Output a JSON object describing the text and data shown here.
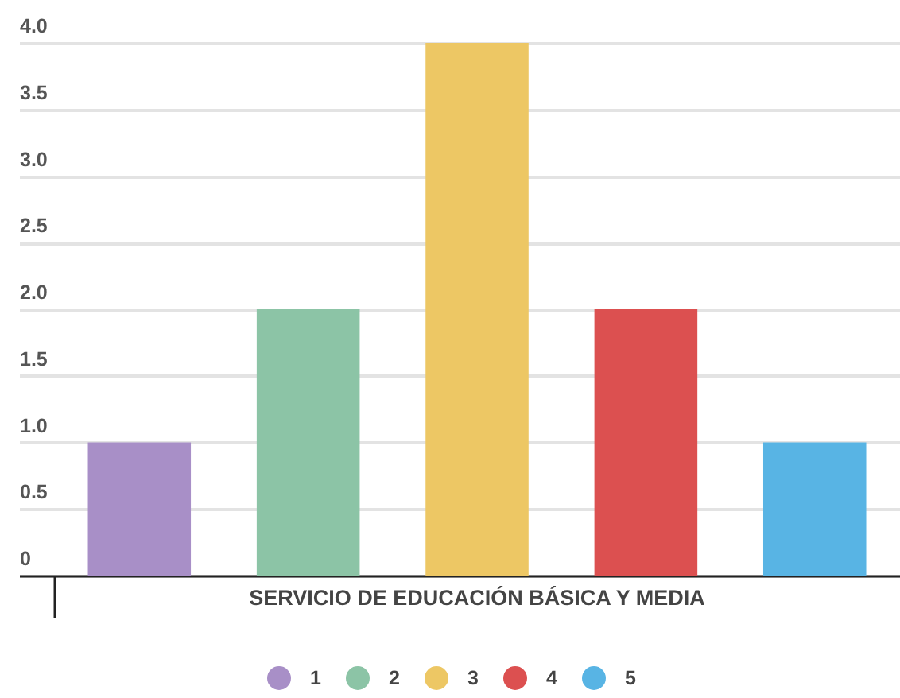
{
  "chart_data": {
    "type": "bar",
    "categories": [
      "SERVICIO DE EDUCACIÓN BÁSICA Y MEDIA"
    ],
    "series": [
      {
        "name": "1",
        "color": "#a88fc7",
        "values": [
          1
        ]
      },
      {
        "name": "2",
        "color": "#8cc4a6",
        "values": [
          2
        ]
      },
      {
        "name": "3",
        "color": "#edc764",
        "values": [
          4
        ]
      },
      {
        "name": "4",
        "color": "#dc5050",
        "values": [
          2
        ]
      },
      {
        "name": "5",
        "color": "#58b4e4",
        "values": [
          1
        ]
      }
    ],
    "ylim": [
      0,
      4
    ],
    "yticks": [
      0,
      0.5,
      {
        "value": 1,
        "label": "1.0"
      },
      1.5,
      {
        "value": 2,
        "label": "2.0"
      },
      2.5,
      {
        "value": 3,
        "label": "3.0"
      },
      3.5,
      {
        "value": 4,
        "label": "4.0"
      }
    ],
    "grid": "y",
    "legend": "bottom"
  }
}
